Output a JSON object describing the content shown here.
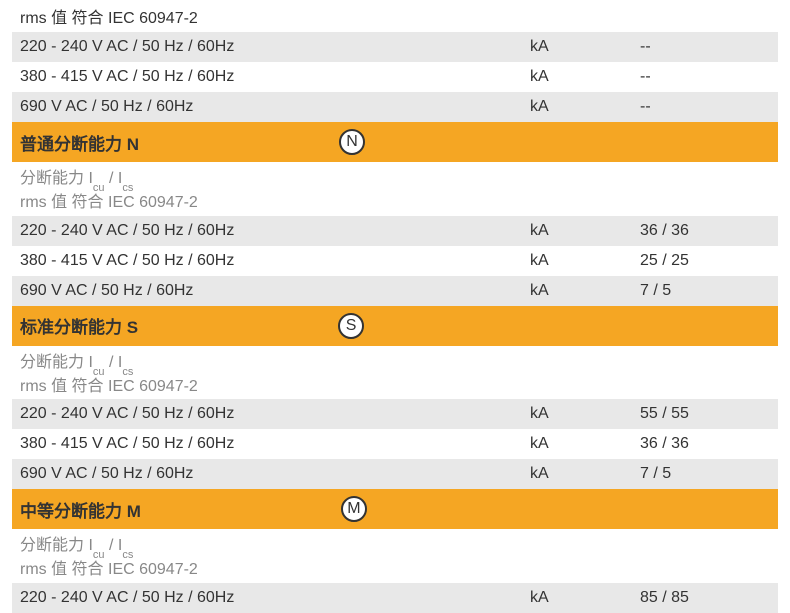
{
  "colors": {
    "header_bg": "#f5a623",
    "grey_row": "#e8e8e8",
    "white_row": "#ffffff",
    "subhead_text": "#888888",
    "text": "#333333"
  },
  "top": {
    "rms_label": "rms 值 符合 IEC 60947-2",
    "rows": [
      {
        "label": "220 - 240 V AC / 50 Hz / 60Hz",
        "unit": "kA",
        "value": "--"
      },
      {
        "label": "380 - 415 V AC / 50 Hz / 60Hz",
        "unit": "kA",
        "value": "--"
      },
      {
        "label": "690 V AC / 50 Hz / 60Hz",
        "unit": "kA",
        "value": "--"
      }
    ]
  },
  "sections": [
    {
      "title": "普通分断能力 N",
      "badge": "N",
      "sub_line1_pre": "分断能力 I",
      "sub_line1_a": "cu",
      "sub_line1_mid": " / I",
      "sub_line1_b": "cs",
      "sub_line2": "rms 值 符合 IEC 60947-2",
      "rows": [
        {
          "label": "220 - 240 V AC / 50 Hz / 60Hz",
          "unit": "kA",
          "value": "36 / 36"
        },
        {
          "label": "380 - 415 V AC / 50 Hz / 60Hz",
          "unit": "kA",
          "value": "25 / 25"
        },
        {
          "label": "690 V AC / 50 Hz / 60Hz",
          "unit": "kA",
          "value": "7 / 5"
        }
      ]
    },
    {
      "title": "标准分断能力 S",
      "badge": "S",
      "sub_line1_pre": "分断能力 I",
      "sub_line1_a": "cu",
      "sub_line1_mid": " / I",
      "sub_line1_b": "cs",
      "sub_line2": "rms 值 符合 IEC 60947-2",
      "rows": [
        {
          "label": "220 - 240 V AC / 50 Hz / 60Hz",
          "unit": "kA",
          "value": "55 / 55"
        },
        {
          "label": "380 - 415 V AC / 50 Hz / 60Hz",
          "unit": "kA",
          "value": "36 / 36"
        },
        {
          "label": "690 V AC / 50 Hz / 60Hz",
          "unit": "kA",
          "value": "7 / 5"
        }
      ]
    },
    {
      "title": "中等分断能力 M",
      "badge": "M",
      "sub_line1_pre": "分断能力 I",
      "sub_line1_a": "cu",
      "sub_line1_mid": " / I",
      "sub_line1_b": "cs",
      "sub_line2": "rms 值 符合 IEC 60947-2",
      "rows": [
        {
          "label": "220 - 240 V AC / 50 Hz / 60Hz",
          "unit": "kA",
          "value": "85 / 85"
        }
      ]
    }
  ]
}
